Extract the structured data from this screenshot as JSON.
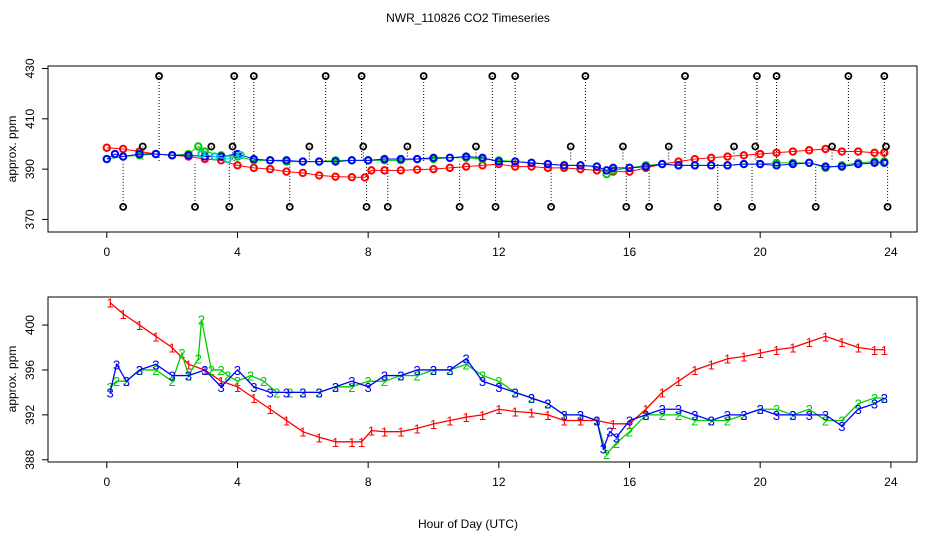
{
  "figure": {
    "title": "NWR_110826  CO2 Timeseries",
    "xlabel": "Hour of Day (UTC)"
  },
  "chart_data": [
    {
      "type": "scatter",
      "panel": "top",
      "ylabel": "approx. ppm",
      "xlim": [
        -1.8,
        24.8
      ],
      "ylim": [
        365,
        431
      ],
      "xticks": [
        0,
        4,
        8,
        12,
        16,
        20,
        24
      ],
      "yticks": [
        370,
        390,
        410,
        430
      ],
      "colors": {
        "red": "#ff0000",
        "green": "#00cc00",
        "blue": "#0000ff",
        "cyan": "#00cccc",
        "black": "#000000"
      },
      "series": [
        {
          "name": "red",
          "x": [
            0,
            0.5,
            1,
            1.5,
            2,
            2.5,
            3,
            3.5,
            4,
            4.5,
            5,
            5.5,
            6,
            6.5,
            7,
            7.5,
            7.9,
            8.1,
            8.5,
            9,
            9.5,
            10,
            10.5,
            11,
            11.5,
            12,
            12.5,
            13,
            13.5,
            14,
            14.5,
            15,
            15.5,
            16,
            16.5,
            17,
            17.5,
            18,
            18.5,
            19,
            19.5,
            20,
            20.5,
            21,
            21.5,
            22,
            22.5,
            23,
            23.5,
            23.8
          ],
          "y": [
            398.5,
            398,
            397,
            396,
            395.5,
            395,
            394,
            393.5,
            391.5,
            390.5,
            390,
            389,
            388.5,
            387.5,
            387,
            386.8,
            386.7,
            389.5,
            389.5,
            389.5,
            389.8,
            390,
            390.5,
            391,
            391.5,
            392,
            391,
            391,
            390.5,
            390.5,
            390,
            389.5,
            389,
            389,
            390.5,
            392,
            393,
            394,
            394.5,
            395,
            395.5,
            396,
            396.5,
            397,
            397.5,
            398,
            397,
            397,
            396.5,
            396.5
          ]
        },
        {
          "name": "green",
          "x": [
            0,
            0.5,
            1,
            1.5,
            2,
            2.5,
            2.8,
            3,
            3.5,
            4,
            4.5,
            5,
            5.5,
            6,
            6.5,
            7,
            7.5,
            8,
            8.5,
            9,
            9.5,
            10,
            10.5,
            11,
            11.5,
            12,
            12.5,
            13,
            13.5,
            14,
            14.5,
            15,
            15.3,
            15.5,
            16,
            16.5,
            17,
            17.5,
            18,
            18.5,
            19,
            19.5,
            20,
            20.5,
            21,
            21.5,
            22,
            22.5,
            23,
            23.5,
            23.8
          ],
          "y": [
            394,
            395,
            395.5,
            396,
            395.5,
            396,
            399,
            397,
            395.5,
            395,
            393.5,
            393.5,
            393,
            393,
            393,
            393.5,
            393.5,
            393.5,
            393.5,
            393.5,
            394,
            394,
            394.5,
            394.5,
            394,
            393.5,
            393,
            392.5,
            392,
            391.5,
            391.5,
            391,
            388,
            389.5,
            390.5,
            391.5,
            392,
            391.5,
            391.5,
            391.5,
            391.5,
            392,
            392,
            392.5,
            392.5,
            392.5,
            390.5,
            391.5,
            392.5,
            393,
            393
          ]
        },
        {
          "name": "blue",
          "x": [
            0,
            0.25,
            0.5,
            1,
            1.5,
            2,
            2.5,
            3,
            3.5,
            4,
            4.5,
            5,
            5.5,
            6,
            6.5,
            7,
            7.5,
            8,
            8.5,
            9,
            9.5,
            10,
            10.5,
            11,
            11.5,
            12,
            12.5,
            13,
            13.5,
            14,
            14.5,
            15,
            15.3,
            15.5,
            16,
            16.5,
            17,
            17.5,
            18,
            18.5,
            19,
            19.5,
            20,
            20.5,
            21,
            21.5,
            22,
            22.5,
            23,
            23.5,
            23.8
          ],
          "y": [
            394,
            396,
            395,
            396,
            396,
            395.5,
            395.5,
            395,
            395,
            396,
            394,
            393.5,
            393.5,
            393,
            393,
            393,
            393.5,
            393.5,
            394,
            394,
            394,
            394.5,
            394.5,
            395,
            394.5,
            393,
            393,
            392.5,
            392,
            391.5,
            391.5,
            391,
            389.5,
            390.5,
            390.5,
            391,
            392,
            391.5,
            391.5,
            391.5,
            391.5,
            392,
            392,
            391.5,
            392,
            392.5,
            391,
            391,
            392,
            392.5,
            392.5
          ]
        },
        {
          "name": "cyan",
          "x": [
            2.9,
            3.3,
            3.7,
            4.1
          ],
          "y": [
            396,
            395,
            394,
            395.5
          ]
        },
        {
          "name": "black",
          "x": [
            0.5,
            1.1,
            1.6,
            2.7,
            3.2,
            3.75,
            3.85,
            3.9,
            4.5,
            5.6,
            6.2,
            6.7,
            7.8,
            7.85,
            7.95,
            8.6,
            9.2,
            9.7,
            10.8,
            11.3,
            11.8,
            11.9,
            12.5,
            13.6,
            14.2,
            14.65,
            15.8,
            15.9,
            16.6,
            17.2,
            17.7,
            18.7,
            19.2,
            19.75,
            19.85,
            19.9,
            20.5,
            21.7,
            22.2,
            22.7,
            23.8,
            23.85,
            23.9
          ],
          "y": [
            375,
            399,
            427,
            375,
            399,
            375,
            399,
            427,
            427,
            375,
            399,
            427,
            427,
            399,
            375,
            375,
            399,
            427,
            375,
            399,
            427,
            375,
            427,
            375,
            399,
            427,
            399,
            375,
            375,
            399,
            427,
            375,
            399,
            375,
            399,
            427,
            427,
            375,
            399,
            427,
            427,
            399,
            375
          ]
        }
      ]
    },
    {
      "type": "line",
      "panel": "bottom",
      "ylabel": "approx. ppm",
      "xlim": [
        -1.8,
        24.8
      ],
      "ylim": [
        387.8,
        402.5
      ],
      "xticks": [
        0,
        4,
        8,
        12,
        16,
        20,
        24
      ],
      "yticks": [
        388,
        392,
        396,
        400
      ],
      "series": [
        {
          "name": "1",
          "color": "#ff0000",
          "x": [
            0.1,
            0.5,
            1,
            1.5,
            2,
            2.5,
            3,
            3.5,
            4,
            4.5,
            5,
            5.5,
            6,
            6.5,
            7,
            7.5,
            7.8,
            8.1,
            8.5,
            9,
            9.5,
            10,
            10.5,
            11,
            11.5,
            12,
            12.5,
            13,
            13.5,
            14,
            14.5,
            15,
            15.5,
            16,
            16.5,
            17,
            17.5,
            18,
            18.5,
            19,
            19.5,
            20,
            20.5,
            21,
            21.5,
            22,
            22.5,
            23,
            23.5,
            23.8
          ],
          "y": [
            402,
            401,
            400,
            399,
            398,
            396.5,
            396,
            395,
            394.5,
            393.5,
            392.5,
            391.5,
            390.5,
            390,
            389.6,
            389.6,
            389.6,
            390.6,
            390.5,
            390.5,
            390.8,
            391.2,
            391.5,
            391.8,
            392,
            392.5,
            392.3,
            392.2,
            392,
            391.5,
            391.5,
            391.5,
            391.2,
            391.2,
            392.5,
            394,
            395,
            396,
            396.5,
            397,
            397.2,
            397.5,
            397.8,
            398,
            398.5,
            399,
            398.5,
            398,
            397.8,
            397.8
          ]
        },
        {
          "name": "2",
          "color": "#00cc00",
          "x": [
            0.1,
            0.3,
            0.6,
            1,
            1.5,
            2,
            2.3,
            2.5,
            2.8,
            2.9,
            3.2,
            3.5,
            3.7,
            4,
            4.4,
            4.8,
            5.2,
            5.6,
            6,
            6.5,
            7,
            7.5,
            8,
            8.5,
            9,
            9.5,
            10,
            10.5,
            11,
            11.5,
            12,
            12.5,
            13,
            13.5,
            14,
            14.5,
            15,
            15.3,
            15.6,
            16,
            16.5,
            17,
            17.5,
            18,
            18.5,
            19,
            19.5,
            20,
            20.5,
            21,
            21.5,
            22,
            22.5,
            23,
            23.5,
            23.8
          ],
          "y": [
            394.5,
            395,
            395,
            396,
            396,
            395,
            397.5,
            395.5,
            397,
            400.5,
            396,
            396,
            395.5,
            395,
            395.5,
            395,
            394,
            394,
            394,
            394,
            394.5,
            394.5,
            395,
            395,
            395.5,
            395.5,
            396,
            396,
            396.5,
            395.5,
            395,
            394,
            393.5,
            393,
            392,
            392,
            391.5,
            388.5,
            389.5,
            390.5,
            392,
            392,
            392,
            391.5,
            391.5,
            391.5,
            392,
            392.5,
            392.5,
            392,
            392.5,
            391.5,
            391.5,
            393,
            393.5,
            393.5
          ]
        },
        {
          "name": "3",
          "color": "#0000ff",
          "x": [
            0.1,
            0.3,
            0.6,
            1,
            1.5,
            2,
            2.5,
            3,
            3.5,
            4,
            4.5,
            5,
            5.5,
            6,
            6.5,
            7,
            7.5,
            8,
            8.5,
            9,
            9.5,
            10,
            10.5,
            11,
            11.5,
            12,
            12.5,
            13,
            13.5,
            14,
            14.5,
            15,
            15.2,
            15.4,
            15.6,
            16,
            16.5,
            17,
            17.5,
            18,
            18.5,
            19,
            19.5,
            20,
            20.5,
            21,
            21.5,
            22,
            22.5,
            23,
            23.5,
            23.8
          ],
          "y": [
            394,
            396.5,
            395,
            396,
            396.5,
            395.5,
            395.5,
            396,
            394.5,
            396,
            394.5,
            394,
            394,
            394,
            394,
            394.5,
            395,
            394.5,
            395.5,
            395.5,
            396,
            396,
            396,
            397,
            395,
            394.5,
            394,
            393.5,
            393,
            392,
            392,
            391.5,
            389,
            390.5,
            390,
            391.5,
            392,
            392.5,
            392.5,
            392,
            391.5,
            392,
            392,
            392.5,
            392,
            392,
            392,
            392,
            391,
            392.5,
            393,
            393.5
          ]
        }
      ]
    }
  ]
}
